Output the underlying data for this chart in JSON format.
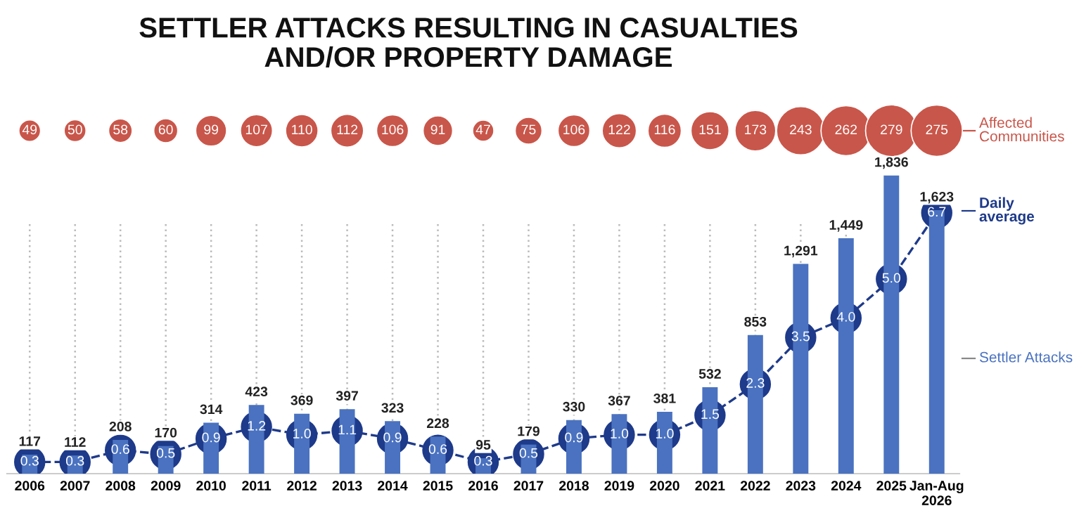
{
  "chart_data": [
    {
      "type": "other",
      "title": "SETTLER ATTACKS RESULTING IN CASUALTIES\nAND/OR PROPERTY DAMAGE",
      "series": [
        {
          "name": "Affected Communities",
          "color": "#c9564a",
          "values": [
            49,
            50,
            58,
            60,
            99,
            107,
            110,
            112,
            106,
            91,
            47,
            75,
            106,
            122,
            116,
            151,
            173,
            243,
            262,
            279,
            275
          ]
        }
      ],
      "data_labels": true
    },
    {
      "type": "bar",
      "categories": [
        "2006",
        "2007",
        "2008",
        "2009",
        "2010",
        "2011",
        "2012",
        "2013",
        "2014",
        "2015",
        "2016",
        "2017",
        "2018",
        "2019",
        "2020",
        "2021",
        "2022",
        "2023",
        "2024",
        "2025",
        "Jan-Aug\n2026"
      ],
      "series": [
        {
          "name": "Settler Attacks",
          "type": "bar",
          "color": "#4a72c0",
          "values": [
            117,
            112,
            208,
            170,
            314,
            423,
            369,
            397,
            323,
            228,
            95,
            179,
            330,
            367,
            381,
            532,
            853,
            1291,
            1449,
            1836,
            1623
          ],
          "value_labels": [
            "117",
            "112",
            "208",
            "170",
            "314",
            "423",
            "369",
            "397",
            "323",
            "228",
            "95",
            "179",
            "330",
            "367",
            "381",
            "532",
            "853",
            "1,291",
            "1,449",
            "1,836",
            "1,623"
          ]
        },
        {
          "name": "Daily average",
          "type": "line",
          "axis": "y2",
          "color": "#1e3a8a",
          "marker": "circle",
          "line_style": "dashed",
          "values": [
            0.3,
            0.3,
            0.6,
            0.5,
            0.9,
            1.2,
            1.0,
            1.1,
            0.9,
            0.6,
            0.3,
            0.5,
            0.9,
            1.0,
            1.0,
            1.5,
            2.3,
            3.5,
            4.0,
            5.0,
            6.7
          ],
          "value_labels": [
            "0.3",
            "0.3",
            "0.6",
            "0.5",
            "0.9",
            "1.2",
            "1.0",
            "1.1",
            "0.9",
            "0.6",
            "0.3",
            "0.5",
            "0.9",
            "1.0",
            "1.0",
            "1.5",
            "2.3",
            "3.5",
            "4.0",
            "5.0",
            "6.7"
          ]
        }
      ],
      "grid": "x",
      "tick_labels": "x"
    }
  ]
}
